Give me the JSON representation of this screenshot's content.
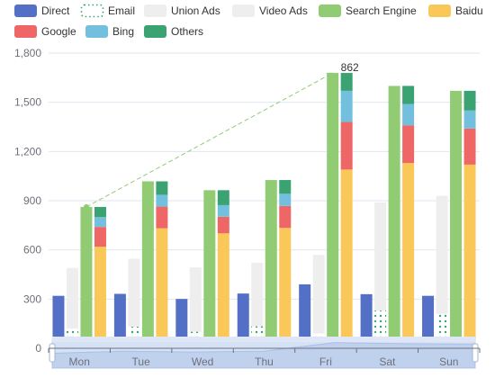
{
  "chart_data": {
    "type": "bar",
    "categories": [
      "Mon",
      "Tue",
      "Wed",
      "Thu",
      "Fri",
      "Sat",
      "Sun"
    ],
    "ylim": [
      0,
      1800
    ],
    "yticks": [
      0,
      300,
      600,
      900,
      1200,
      1500,
      1800
    ],
    "ytick_labels": [
      "0",
      "300",
      "600",
      "900",
      "1,200",
      "1,500",
      "1,800"
    ],
    "grid": true,
    "legend": {
      "placement": "top-left"
    },
    "series": [
      {
        "name": "Direct",
        "color": "#5470c6",
        "style": "solid",
        "stack": "",
        "values": [
          320,
          332,
          301,
          334,
          390,
          330,
          320
        ]
      },
      {
        "name": "Email",
        "color": "#91cc75",
        "style": "dotted",
        "stack": "ad",
        "values": [
          120,
          132,
          101,
          134,
          90,
          230,
          210
        ]
      },
      {
        "name": "Union Ads",
        "color": "#eeeeee",
        "style": "solid",
        "stack": "ad",
        "values": [
          220,
          182,
          191,
          234,
          290,
          330,
          310
        ]
      },
      {
        "name": "Video Ads",
        "color": "#eeeeee",
        "style": "solid",
        "stack": "ad",
        "values": [
          150,
          232,
          201,
          154,
          190,
          330,
          410
        ]
      },
      {
        "name": "Search Engine",
        "color": "#91cc75",
        "style": "solid",
        "stack": "",
        "values": [
          862,
          1018,
          964,
          1026,
          1679,
          1600,
          1570
        ]
      },
      {
        "name": "Baidu",
        "color": "#fac858",
        "style": "solid",
        "stack": "search",
        "values": [
          620,
          732,
          701,
          734,
          1090,
          1130,
          1120
        ]
      },
      {
        "name": "Google",
        "color": "#ee6666",
        "style": "solid",
        "stack": "search",
        "values": [
          120,
          132,
          101,
          134,
          290,
          230,
          220
        ]
      },
      {
        "name": "Bing",
        "color": "#73c0de",
        "style": "solid",
        "stack": "search",
        "values": [
          60,
          72,
          71,
          74,
          190,
          130,
          110
        ]
      },
      {
        "name": "Others",
        "color": "#3ba272",
        "style": "solid",
        "stack": "search",
        "values": [
          62,
          82,
          91,
          84,
          109,
          110,
          120
        ]
      }
    ],
    "annotation": {
      "label": "862",
      "from": {
        "category": "Mon",
        "value": 862
      },
      "to": {
        "category": "Fri",
        "value": 1679
      },
      "color": "#91cc75"
    },
    "datazoom": {
      "start_category": "Mon",
      "end_category": "Sun"
    }
  }
}
